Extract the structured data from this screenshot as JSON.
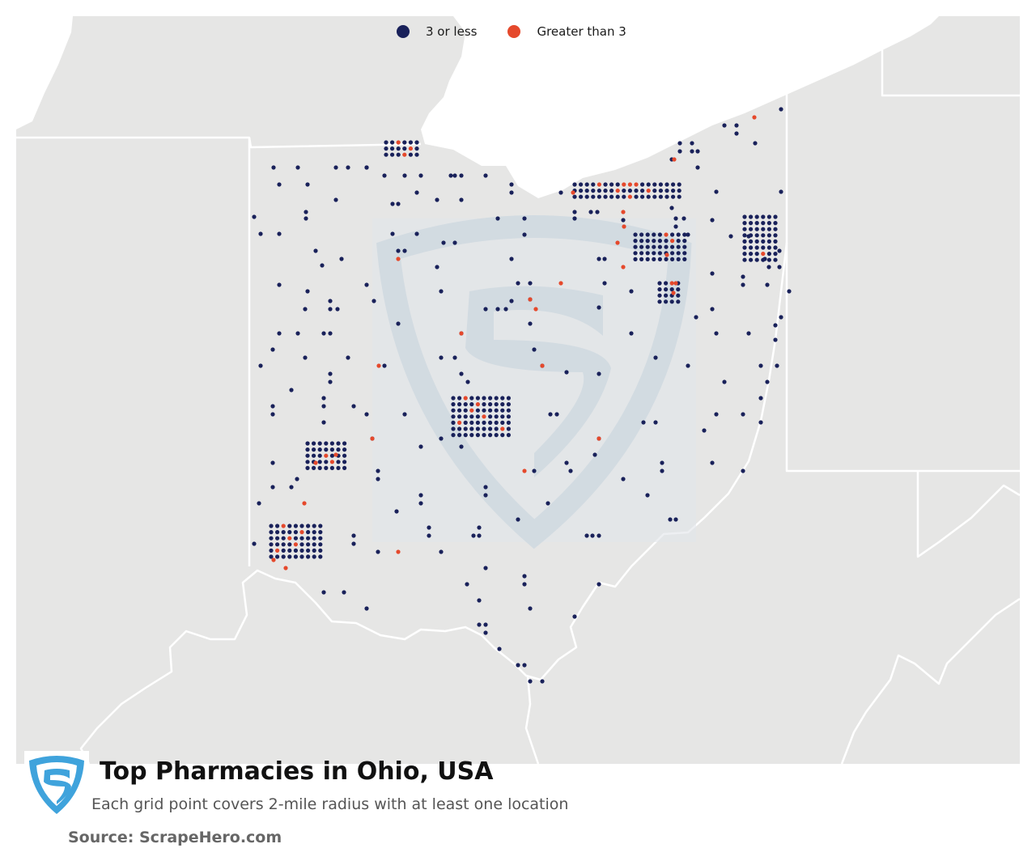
{
  "legend": {
    "low_label": "3 or less",
    "high_label": "Greater than 3",
    "low_color": "#19215a",
    "high_color": "#e5492c"
  },
  "colors": {
    "land": "#e6e6e5",
    "water": "#ffffff",
    "border": "#ffffff",
    "watermark": "#c5d4e0"
  },
  "footer": {
    "title": "Top Pharmacies in Ohio, USA",
    "subtitle": "Each grid point covers 2-mile radius with at least one location",
    "source": "Source: ScrapeHero.com"
  },
  "logo": {
    "icon": "scrapehero-shield-icon",
    "color": "#3fa3dc"
  },
  "watermark": {
    "icon": "scrapehero-shield-icon"
  }
}
